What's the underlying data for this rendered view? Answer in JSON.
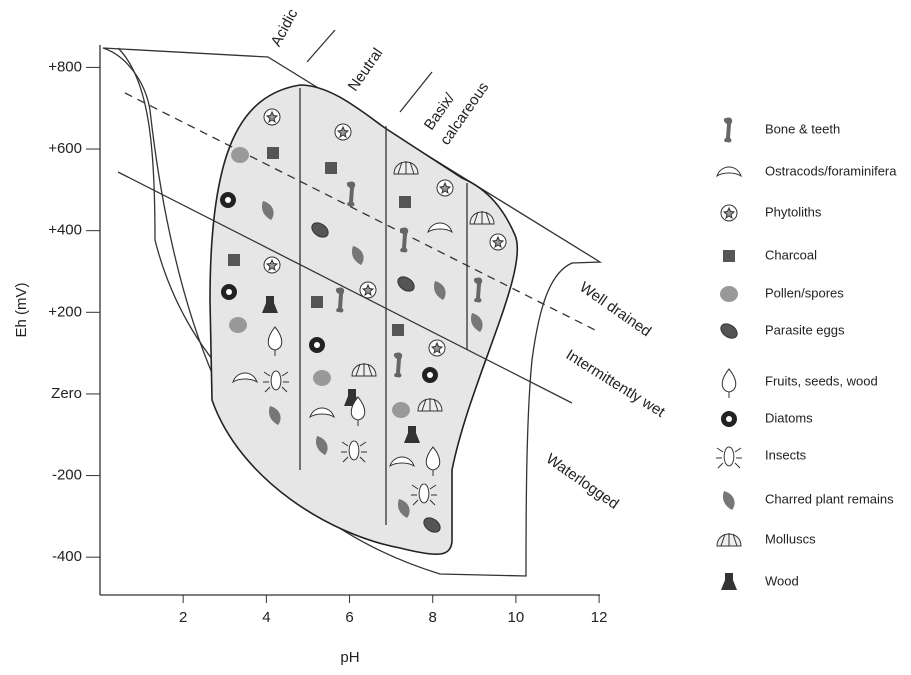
{
  "diagram": {
    "axes": {
      "x": {
        "label": "pH",
        "lim": [
          0,
          12
        ],
        "ticks": [
          2,
          4,
          6,
          8,
          10,
          12
        ]
      },
      "y": {
        "label": "Eh (mV)",
        "lim": [
          -500,
          850
        ],
        "ticks": [
          {
            "value": 800,
            "label": "+800"
          },
          {
            "value": 600,
            "label": "+600"
          },
          {
            "value": 400,
            "label": "+400"
          },
          {
            "value": 200,
            "label": "+200"
          },
          {
            "value": 0,
            "label": "Zero"
          },
          {
            "value": -200,
            "label": "-200"
          },
          {
            "value": -400,
            "label": "-400"
          }
        ]
      }
    },
    "zones": {
      "acidic": "Acidic",
      "neutral": "Neutral",
      "basic": [
        "Basix/",
        "calcareous"
      ],
      "well_drained": "Well drained",
      "intermittently_wet": "Intermittently wet",
      "waterlogged": "Waterlogged"
    },
    "legend": {
      "items": [
        "Bone & teeth",
        "Ostracods/foraminifera",
        "Phytoliths",
        "Charcoal",
        "Pollen/spores",
        "Parasite eggs",
        "Fruits, seeds, wood",
        "Diatoms",
        "Insects",
        "Charred plant remains",
        "Molluscs",
        "Wood"
      ]
    }
  }
}
